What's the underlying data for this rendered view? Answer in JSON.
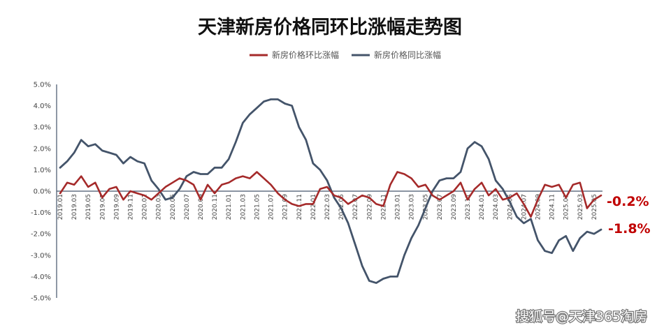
{
  "chart_data": {
    "type": "line",
    "title": "天津新房价格同环比涨幅走势图",
    "xlabel": "",
    "ylabel": "",
    "ylim": [
      -5.0,
      5.0
    ],
    "yticks": [
      "5.0%",
      "4.0%",
      "3.0%",
      "2.0%",
      "1.0%",
      "0.0%",
      "-1.0%",
      "-2.0%",
      "-3.0%",
      "-4.0%",
      "-5.0%"
    ],
    "x": [
      "2019.01",
      "2019.02",
      "2019.03",
      "2019.04",
      "2019.05",
      "2019.06",
      "2019.07",
      "2019.08",
      "2019.09",
      "2019.10",
      "2019.11",
      "2019.12",
      "2020.01",
      "2020.02",
      "2020.03",
      "2020.04",
      "2020.05",
      "2020.06",
      "2020.07",
      "2020.08",
      "2020.09",
      "2020.10",
      "2020.11",
      "2020.12",
      "2021.01",
      "2021.02",
      "2021.03",
      "2021.04",
      "2021.05",
      "2021.06",
      "2021.07",
      "2021.08",
      "2021.09",
      "2021.10",
      "2021.11",
      "2021.12",
      "2022.01",
      "2022.02",
      "2022.03",
      "2022.04",
      "2022.05",
      "2022.06",
      "2022.07",
      "2022.08",
      "2022.09",
      "2022.10",
      "2022.11",
      "2022.12",
      "2023.01",
      "2023.02",
      "2023.03",
      "2023.04",
      "2023.05",
      "2023.06",
      "2023.07",
      "2023.08",
      "2023.09",
      "2023.10",
      "2023.11",
      "2023.12",
      "2024.01",
      "2024.02",
      "2024.03",
      "2024.04",
      "2024.05",
      "2024.06",
      "2024.07",
      "2024.08",
      "2024.09",
      "2024.10",
      "2024.11",
      "2024.12",
      "2025.01",
      "2025.02",
      "2025.03",
      "2025.04",
      "2025.05",
      "2025.06"
    ],
    "xtick_labels": [
      "2019.01",
      "2019.03",
      "2019.05",
      "2019.07",
      "2019.09",
      "2019.11",
      "2020.01",
      "2020.03",
      "2020.05",
      "2020.07",
      "2020.09",
      "2020.11",
      "2021.01",
      "2021.03",
      "2021.05",
      "2021.07",
      "2021.09",
      "2021.11",
      "2022.01",
      "2022.03",
      "2022.05",
      "2022.07",
      "2022.09",
      "2022.11",
      "2023.01",
      "2023.03",
      "2023.05",
      "2023.07",
      "2023.09",
      "2023.11",
      "2024.01",
      "2024.03",
      "2024.05",
      "2024.07",
      "2024.09",
      "2024.11",
      "2025.01",
      "2025.03",
      "2025.05"
    ],
    "legend_position": "top-center",
    "grid": false,
    "series": [
      {
        "name": "新房价格环比涨幅",
        "color": "#a52a2a",
        "values": [
          -0.1,
          0.4,
          0.3,
          0.7,
          0.2,
          0.4,
          -0.3,
          0.1,
          0.2,
          -0.4,
          0.0,
          -0.1,
          -0.2,
          -0.4,
          -0.1,
          0.2,
          0.4,
          0.6,
          0.5,
          0.3,
          -0.4,
          0.3,
          -0.1,
          0.3,
          0.4,
          0.6,
          0.7,
          0.6,
          0.9,
          0.6,
          0.3,
          -0.1,
          -0.4,
          -0.6,
          -0.7,
          -0.6,
          -0.6,
          0.1,
          0.2,
          -0.2,
          -0.3,
          -0.6,
          -0.4,
          -0.2,
          -0.3,
          -0.6,
          -0.7,
          0.3,
          0.9,
          0.8,
          0.6,
          0.2,
          0.3,
          -0.2,
          -0.4,
          -0.2,
          0.0,
          0.4,
          -0.4,
          0.1,
          0.4,
          -0.2,
          0.1,
          -0.4,
          -0.3,
          -0.1,
          -0.6,
          -1.2,
          -0.4,
          0.3,
          0.2,
          0.3,
          -0.3,
          0.3,
          0.4,
          -0.8,
          -0.4,
          -0.2
        ],
        "end_label": "-0.2%"
      },
      {
        "name": "新房价格同比涨幅",
        "color": "#44546a",
        "values": [
          1.1,
          1.4,
          1.8,
          2.4,
          2.1,
          2.2,
          1.9,
          1.8,
          1.7,
          1.3,
          1.6,
          1.4,
          1.3,
          0.5,
          0.1,
          -0.4,
          -0.3,
          0.1,
          0.7,
          0.9,
          0.8,
          0.8,
          1.1,
          1.1,
          1.5,
          2.3,
          3.2,
          3.6,
          3.9,
          4.2,
          4.3,
          4.3,
          4.1,
          4.0,
          3.0,
          2.4,
          1.3,
          1.0,
          0.5,
          -0.3,
          -0.8,
          -1.5,
          -2.5,
          -3.5,
          -4.2,
          -4.3,
          -4.1,
          -4.0,
          -4.0,
          -3.0,
          -2.2,
          -1.6,
          -0.8,
          0.0,
          0.5,
          0.6,
          0.6,
          0.9,
          2.0,
          2.3,
          2.1,
          1.5,
          0.5,
          0.1,
          -0.5,
          -1.2,
          -1.5,
          -1.3,
          -2.3,
          -2.8,
          -2.9,
          -2.3,
          -2.1,
          -2.8,
          -2.2,
          -1.9,
          -2.0,
          -1.8
        ],
        "end_label": "-1.8%"
      }
    ]
  },
  "watermark": "搜狐号@天津365淘房"
}
